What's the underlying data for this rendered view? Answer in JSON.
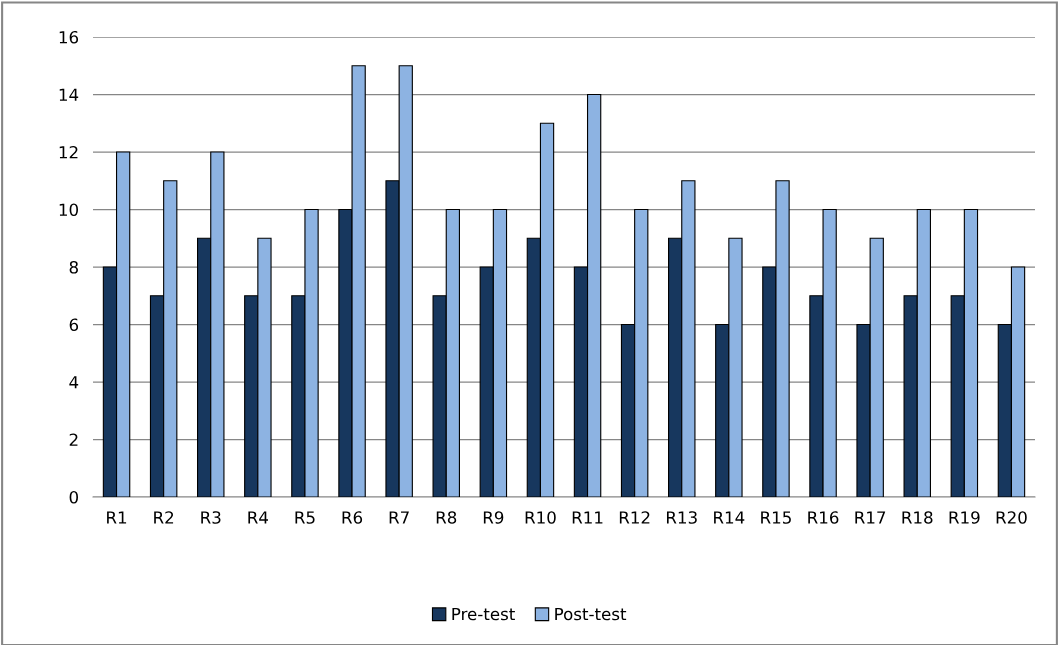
{
  "chart_data": {
    "type": "bar",
    "categories": [
      "R1",
      "R2",
      "R3",
      "R4",
      "R5",
      "R6",
      "R7",
      "R8",
      "R9",
      "R10",
      "R11",
      "R12",
      "R13",
      "R14",
      "R15",
      "R16",
      "R17",
      "R18",
      "R19",
      "R20"
    ],
    "series": [
      {
        "name": "Pre-test",
        "color": "#17375e",
        "values": [
          8,
          7,
          9,
          7,
          7,
          10,
          11,
          7,
          8,
          9,
          8,
          6,
          9,
          6,
          8,
          7,
          6,
          7,
          7,
          6
        ]
      },
      {
        "name": "Post-test",
        "color": "#8db3e2",
        "values": [
          12,
          11,
          12,
          9,
          10,
          15,
          15,
          10,
          10,
          13,
          14,
          10,
          11,
          9,
          11,
          10,
          9,
          10,
          10,
          8
        ]
      }
    ],
    "ylim": [
      0,
      16
    ],
    "yticks": [
      0,
      2,
      4,
      6,
      8,
      10,
      12,
      14,
      16
    ],
    "grid": "y",
    "legend": "bottom"
  }
}
